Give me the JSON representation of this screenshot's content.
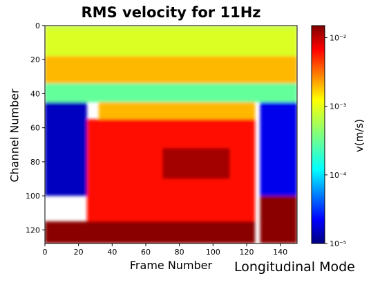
{
  "chart_data": {
    "type": "heatmap",
    "title": "RMS velocity for 11Hz",
    "xlabel": "Frame Number",
    "ylabel": "Channel Number",
    "xlim": [
      0,
      150
    ],
    "ylim": [
      128,
      0
    ],
    "x_ticks": [
      0,
      20,
      40,
      60,
      80,
      100,
      120,
      140
    ],
    "y_ticks": [
      0,
      20,
      40,
      60,
      80,
      100,
      120
    ],
    "colorbar": {
      "label": "v(m/s)",
      "scale": "log",
      "range": [
        1e-05,
        0.015
      ],
      "colormap": "jet",
      "tick_values": [
        0.01,
        0.001,
        0.0001,
        1e-05
      ],
      "tick_labels": [
        "10⁻²",
        "10⁻³",
        "10⁻⁴",
        "10⁻⁵"
      ]
    },
    "regions": [
      {
        "channels": [
          0,
          3
        ],
        "frames": [
          0,
          150
        ],
        "value": 0.0008
      },
      {
        "channels": [
          3,
          18
        ],
        "frames": [
          0,
          150
        ],
        "value": 0.0009
      },
      {
        "channels": [
          18,
          34
        ],
        "frames": [
          0,
          150
        ],
        "value": 0.002
      },
      {
        "channels": [
          34,
          45
        ],
        "frames": [
          0,
          150
        ],
        "value": 0.0003
      },
      {
        "channels": [
          45,
          55
        ],
        "frames": [
          32,
          125
        ],
        "value": 0.002
      },
      {
        "channels": [
          55,
          115
        ],
        "frames": [
          25,
          125
        ],
        "value": 0.006
      },
      {
        "channels": [
          72,
          90
        ],
        "frames": [
          70,
          110
        ],
        "value": 0.012
      },
      {
        "channels": [
          45,
          100
        ],
        "frames": [
          0,
          25
        ],
        "value": 1.5e-05
      },
      {
        "channels": [
          45,
          100
        ],
        "frames": [
          128,
          150
        ],
        "value": 2e-05
      },
      {
        "channels": [
          100,
          128
        ],
        "frames": [
          128,
          150
        ],
        "value": 0.014
      },
      {
        "channels": [
          115,
          128
        ],
        "frames": [
          0,
          125
        ],
        "value": 0.014
      }
    ]
  },
  "footnote": "Longitudinal Mode"
}
